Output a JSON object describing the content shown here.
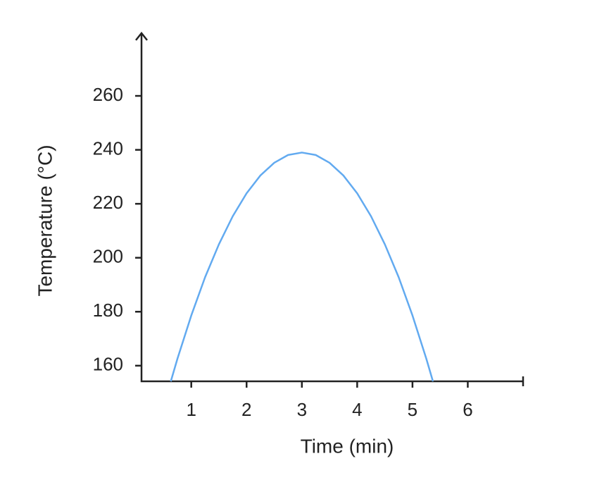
{
  "chart_data": {
    "type": "line",
    "x_label": "Time (min)",
    "y_label": "Temperature (°C)",
    "x": [
      0.63,
      0.75,
      1.0,
      1.25,
      1.5,
      1.75,
      2.0,
      2.25,
      2.5,
      2.75,
      3.0,
      3.25,
      3.5,
      3.75,
      4.0,
      4.25,
      4.5,
      4.75,
      5.0,
      5.25,
      5.37
    ],
    "series": [
      {
        "color": "#62aaf0",
        "values": [
          154.2,
          162.6,
          178.6,
          192.8,
          205.0,
          215.4,
          223.9,
          230.5,
          235.2,
          238.1,
          239,
          238.1,
          235.2,
          230.5,
          223.9,
          215.4,
          205.0,
          192.8,
          178.6,
          162.6,
          154.2
        ]
      }
    ],
    "xlim": [
      0.1,
      7
    ],
    "xticks": [
      1,
      2,
      3,
      4,
      5,
      6
    ],
    "ylim": [
      154.2,
      283
    ],
    "yticks": [
      160,
      180,
      200,
      220,
      240,
      260
    ]
  }
}
